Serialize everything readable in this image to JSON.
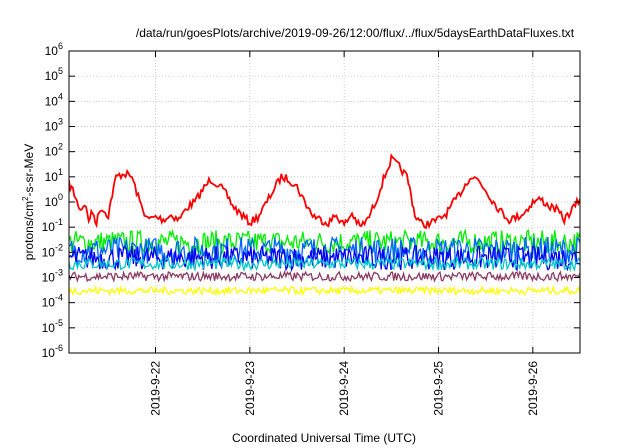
{
  "chart_data": {
    "type": "line",
    "title": "/data/run/goesPlots/archive/2019-09-26/12:00/flux/../flux/5daysEarthDataFluxes.txt",
    "xlabel": "Coordinated Universal Time (UTC)",
    "ylabel": {
      "pre": "protons/cm",
      "sup": "2",
      "post": "-s-sr-MeV"
    },
    "yscale": "log",
    "ylim": [
      1e-06,
      1000000.0
    ],
    "xlim": [
      "2019-09-21T02:00",
      "2019-09-26T12:00"
    ],
    "grid": true,
    "legend": "none",
    "ytick_labels": [
      {
        "base": "10",
        "exp": "-6",
        "value": 1e-06
      },
      {
        "base": "10",
        "exp": "-5",
        "value": 1e-05
      },
      {
        "base": "10",
        "exp": "-4",
        "value": 0.0001
      },
      {
        "base": "10",
        "exp": "-3",
        "value": 0.001
      },
      {
        "base": "10",
        "exp": "-2",
        "value": 0.01
      },
      {
        "base": "10",
        "exp": "-1",
        "value": 0.1
      },
      {
        "base": "10",
        "exp": "0",
        "value": 1
      },
      {
        "base": "10",
        "exp": "1",
        "value": 10
      },
      {
        "base": "10",
        "exp": "2",
        "value": 100
      },
      {
        "base": "10",
        "exp": "3",
        "value": 1000
      },
      {
        "base": "10",
        "exp": "4",
        "value": 10000
      },
      {
        "base": "10",
        "exp": "5",
        "value": 100000
      },
      {
        "base": "10",
        "exp": "6",
        "value": 1000000
      }
    ],
    "xtick_labels": [
      {
        "label": "2019-9-22",
        "value": "2019-09-22T00:00"
      },
      {
        "label": "2019-9-23",
        "value": "2019-09-23T00:00"
      },
      {
        "label": "2019-9-24",
        "value": "2019-09-24T00:00"
      },
      {
        "label": "2019-9-25",
        "value": "2019-09-25T00:00"
      },
      {
        "label": "2019-9-26",
        "value": "2019-09-26T00:00"
      }
    ],
    "series": [
      {
        "color": "#ff0000",
        "x": [
          "2019-09-21T02:00",
          "2019-09-21T03:00",
          "2019-09-21T04:00",
          "2019-09-21T05:00",
          "2019-09-21T06:00",
          "2019-09-21T07:00",
          "2019-09-21T08:00",
          "2019-09-21T09:00",
          "2019-09-21T10:00",
          "2019-09-21T12:00",
          "2019-09-21T13:00",
          "2019-09-21T14:00",
          "2019-09-21T16:00",
          "2019-09-21T18:00",
          "2019-09-21T20:00",
          "2019-09-21T22:00",
          "2019-09-22T00:00",
          "2019-09-22T02:00",
          "2019-09-22T04:00",
          "2019-09-22T06:00",
          "2019-09-22T08:00",
          "2019-09-22T10:00",
          "2019-09-22T12:00",
          "2019-09-22T14:00",
          "2019-09-22T16:00",
          "2019-09-22T18:00",
          "2019-09-22T20:00",
          "2019-09-22T22:00",
          "2019-09-23T00:00",
          "2019-09-23T02:00",
          "2019-09-23T04:00",
          "2019-09-23T06:00",
          "2019-09-23T08:00",
          "2019-09-23T10:00",
          "2019-09-23T12:00",
          "2019-09-23T14:00",
          "2019-09-23T16:00",
          "2019-09-23T18:00",
          "2019-09-23T20:00",
          "2019-09-23T22:00",
          "2019-09-24T00:00",
          "2019-09-24T02:00",
          "2019-09-24T04:00",
          "2019-09-24T06:00",
          "2019-09-24T08:00",
          "2019-09-24T10:00",
          "2019-09-24T12:00",
          "2019-09-24T14:00",
          "2019-09-24T16:00",
          "2019-09-24T17:00",
          "2019-09-24T18:00",
          "2019-09-24T20:00",
          "2019-09-24T22:00",
          "2019-09-25T00:00",
          "2019-09-25T02:00",
          "2019-09-25T04:00",
          "2019-09-25T06:00",
          "2019-09-25T08:00",
          "2019-09-25T10:00",
          "2019-09-25T12:00",
          "2019-09-25T14:00",
          "2019-09-25T16:00",
          "2019-09-25T18:00",
          "2019-09-25T20:00",
          "2019-09-25T22:00",
          "2019-09-26T00:00",
          "2019-09-26T02:00",
          "2019-09-26T04:00",
          "2019-09-26T06:00",
          "2019-09-26T08:00",
          "2019-09-26T10:00",
          "2019-09-26T12:00"
        ],
        "y": [
          5,
          3,
          1,
          0.5,
          0.9,
          0.2,
          0.4,
          0.15,
          0.6,
          0.3,
          2,
          10,
          14,
          10,
          1,
          0.2,
          0.25,
          0.2,
          0.3,
          0.2,
          0.6,
          1,
          3,
          8,
          5,
          2,
          0.6,
          0.3,
          0.15,
          0.25,
          0.8,
          3,
          10,
          8,
          4,
          1,
          0.3,
          0.2,
          0.15,
          0.3,
          0.12,
          0.35,
          0.1,
          0.2,
          1,
          8,
          50,
          25,
          10,
          2,
          0.3,
          0.12,
          0.15,
          0.2,
          0.35,
          1,
          3,
          10,
          8,
          3,
          1,
          0.4,
          0.2,
          0.25,
          0.4,
          1,
          1.3,
          0.7,
          0.5,
          0.2,
          0.5,
          1.3
        ]
      },
      {
        "color": "#00ee00",
        "base": 0.025,
        "spread": 0.8,
        "x": [
          "2019-09-21T02:00",
          "2019-09-26T12:00"
        ]
      },
      {
        "color": "#0066ff",
        "base": 0.012,
        "spread": 0.9,
        "x": [
          "2019-09-21T02:00",
          "2019-09-26T12:00"
        ]
      },
      {
        "color": "#0000ee",
        "base": 0.006,
        "spread": 0.8,
        "x": [
          "2019-09-21T02:00",
          "2019-09-26T12:00"
        ]
      },
      {
        "color": "#00c8c8",
        "base": 0.0035,
        "spread": 0.4,
        "x": [
          "2019-09-21T02:00",
          "2019-09-26T12:00"
        ]
      },
      {
        "color": "#8b3a62",
        "base": 0.0011,
        "spread": 0.3,
        "x": [
          "2019-09-21T02:00",
          "2019-09-26T12:00"
        ]
      },
      {
        "color": "#ffff00",
        "base": 0.0003,
        "spread": 0.25,
        "x": [
          "2019-09-21T02:00",
          "2019-09-26T12:00"
        ]
      }
    ]
  }
}
